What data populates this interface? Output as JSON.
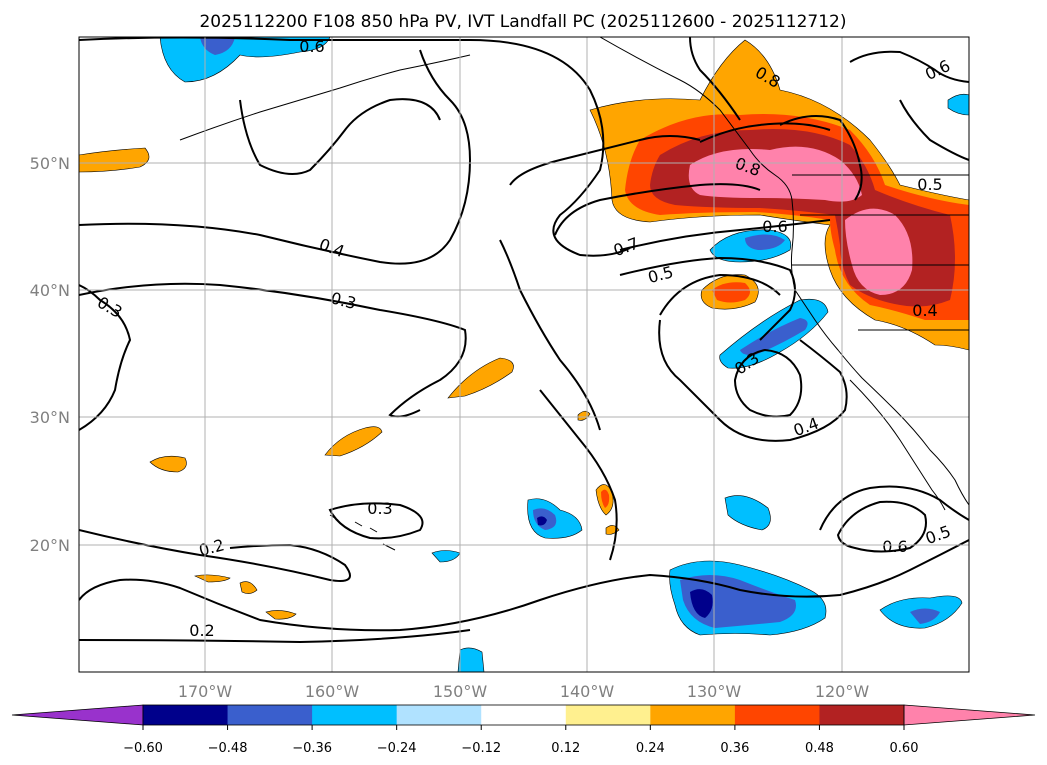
{
  "title": "2025112200 F108 850 hPa PV, IVT Landfall PC (2025112600 - 2025112712)",
  "lon_labels": [
    "170°W",
    "160°W",
    "150°W",
    "140°W",
    "130°W",
    "120°W"
  ],
  "lat_labels": [
    "50°N",
    "40°N",
    "30°N",
    "20°N"
  ],
  "colorbar": {
    "ticks": [
      "−0.60",
      "−0.48",
      "−0.36",
      "−0.24",
      "−0.12",
      "0.12",
      "0.24",
      "0.36",
      "0.48",
      "0.60"
    ],
    "colors": [
      "#9932cc",
      "#00008b",
      "#3a5fcd",
      "#00bfff",
      "#b0e2ff",
      "#ffffff",
      "#fff08f",
      "#ffa500",
      "#ff4500",
      "#b22222",
      "#ff82ab"
    ]
  },
  "contour_labels": {
    "c1": "0.6",
    "c2": "0.6",
    "c3": "0.8",
    "c4": "0.8",
    "c5": "0.5",
    "c6": "0.6",
    "c7": "0.7",
    "c8": "0.4",
    "c9": "0.5",
    "c10": "0.3",
    "c11": "0.3",
    "c12": "0.4",
    "c13": "0.3",
    "c14": "0.4",
    "c15": "0.3",
    "c16": "0.6",
    "c17": "0.5",
    "c18": "0.2",
    "c19": "0.2"
  }
}
